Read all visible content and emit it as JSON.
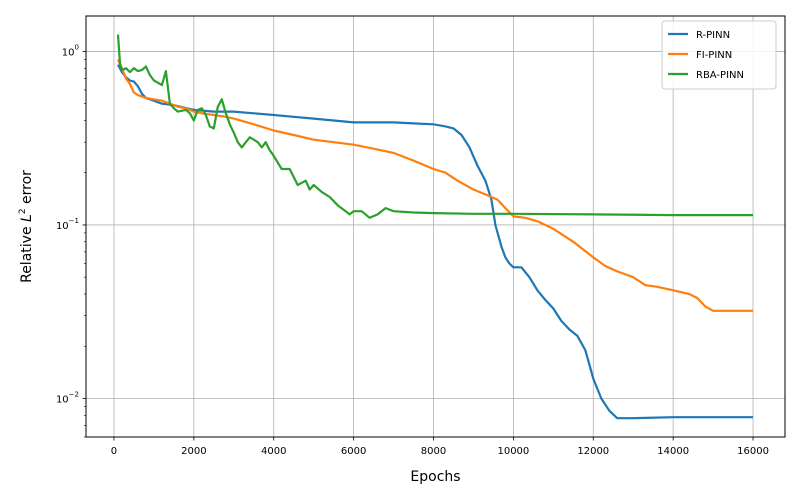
{
  "chart_data": {
    "type": "line",
    "title": "",
    "xlabel": "Epochs",
    "ylabel_prefix": "Relative ",
    "ylabel_var": "L",
    "ylabel_sup": "2",
    "ylabel_suffix": " error",
    "xlim": [
      -700,
      16800
    ],
    "ylim": [
      0.006,
      1.6
    ],
    "yscale": "log",
    "grid": true,
    "legend_position": "top-right",
    "x_ticks": [
      0,
      2000,
      4000,
      6000,
      8000,
      10000,
      12000,
      14000,
      16000
    ],
    "y_ticks": [
      {
        "value": 0.01,
        "base": "10",
        "exp": "−2"
      },
      {
        "value": 0.1,
        "base": "10",
        "exp": "−1"
      },
      {
        "value": 1,
        "base": "10",
        "exp": "0"
      }
    ],
    "series": [
      {
        "name": "R-PINN",
        "color": "#1f77b4",
        "points": [
          [
            100,
            0.84
          ],
          [
            200,
            0.76
          ],
          [
            300,
            0.71
          ],
          [
            400,
            0.68
          ],
          [
            500,
            0.67
          ],
          [
            600,
            0.63
          ],
          [
            700,
            0.57
          ],
          [
            800,
            0.54
          ],
          [
            1000,
            0.52
          ],
          [
            1200,
            0.5
          ],
          [
            1500,
            0.49
          ],
          [
            2000,
            0.46
          ],
          [
            2500,
            0.45
          ],
          [
            3000,
            0.45
          ],
          [
            3500,
            0.44
          ],
          [
            4000,
            0.43
          ],
          [
            4500,
            0.42
          ],
          [
            5000,
            0.41
          ],
          [
            5500,
            0.4
          ],
          [
            6000,
            0.39
          ],
          [
            6500,
            0.39
          ],
          [
            7000,
            0.39
          ],
          [
            7500,
            0.385
          ],
          [
            8000,
            0.38
          ],
          [
            8300,
            0.37
          ],
          [
            8500,
            0.36
          ],
          [
            8700,
            0.33
          ],
          [
            8900,
            0.28
          ],
          [
            9100,
            0.22
          ],
          [
            9300,
            0.18
          ],
          [
            9450,
            0.14
          ],
          [
            9550,
            0.1
          ],
          [
            9700,
            0.075
          ],
          [
            9800,
            0.065
          ],
          [
            9900,
            0.06
          ],
          [
            10000,
            0.057
          ],
          [
            10200,
            0.057
          ],
          [
            10400,
            0.05
          ],
          [
            10600,
            0.042
          ],
          [
            10800,
            0.037
          ],
          [
            11000,
            0.033
          ],
          [
            11200,
            0.028
          ],
          [
            11400,
            0.025
          ],
          [
            11600,
            0.023
          ],
          [
            11800,
            0.019
          ],
          [
            12000,
            0.013
          ],
          [
            12200,
            0.01
          ],
          [
            12400,
            0.0085
          ],
          [
            12600,
            0.0077
          ],
          [
            13000,
            0.0077
          ],
          [
            14000,
            0.0078
          ],
          [
            15000,
            0.0078
          ],
          [
            16000,
            0.0078
          ]
        ]
      },
      {
        "name": "FI-PINN",
        "color": "#ff7f0e",
        "points": [
          [
            100,
            0.9
          ],
          [
            200,
            0.8
          ],
          [
            300,
            0.7
          ],
          [
            400,
            0.65
          ],
          [
            500,
            0.58
          ],
          [
            600,
            0.56
          ],
          [
            700,
            0.55
          ],
          [
            800,
            0.54
          ],
          [
            1000,
            0.53
          ],
          [
            1200,
            0.52
          ],
          [
            1400,
            0.5
          ],
          [
            1600,
            0.48
          ],
          [
            1800,
            0.47
          ],
          [
            2000,
            0.45
          ],
          [
            2200,
            0.44
          ],
          [
            2500,
            0.43
          ],
          [
            2800,
            0.42
          ],
          [
            3000,
            0.41
          ],
          [
            3500,
            0.38
          ],
          [
            4000,
            0.35
          ],
          [
            4500,
            0.33
          ],
          [
            5000,
            0.31
          ],
          [
            5500,
            0.3
          ],
          [
            6000,
            0.29
          ],
          [
            6500,
            0.275
          ],
          [
            7000,
            0.26
          ],
          [
            7500,
            0.235
          ],
          [
            8000,
            0.21
          ],
          [
            8300,
            0.2
          ],
          [
            8600,
            0.18
          ],
          [
            9000,
            0.16
          ],
          [
            9300,
            0.15
          ],
          [
            9600,
            0.14
          ],
          [
            9800,
            0.125
          ],
          [
            10000,
            0.112
          ],
          [
            10300,
            0.11
          ],
          [
            10600,
            0.105
          ],
          [
            11000,
            0.095
          ],
          [
            11500,
            0.08
          ],
          [
            12000,
            0.065
          ],
          [
            12300,
            0.058
          ],
          [
            12600,
            0.054
          ],
          [
            13000,
            0.05
          ],
          [
            13300,
            0.045
          ],
          [
            13600,
            0.044
          ],
          [
            14000,
            0.042
          ],
          [
            14400,
            0.04
          ],
          [
            14600,
            0.038
          ],
          [
            14800,
            0.034
          ],
          [
            15000,
            0.032
          ],
          [
            15500,
            0.032
          ],
          [
            16000,
            0.032
          ]
        ]
      },
      {
        "name": "RBA-PINN",
        "color": "#2ca02c",
        "points": [
          [
            100,
            1.25
          ],
          [
            150,
            0.85
          ],
          [
            200,
            0.78
          ],
          [
            300,
            0.8
          ],
          [
            400,
            0.76
          ],
          [
            500,
            0.8
          ],
          [
            600,
            0.77
          ],
          [
            700,
            0.78
          ],
          [
            800,
            0.82
          ],
          [
            900,
            0.73
          ],
          [
            1000,
            0.68
          ],
          [
            1100,
            0.66
          ],
          [
            1200,
            0.64
          ],
          [
            1300,
            0.77
          ],
          [
            1400,
            0.5
          ],
          [
            1500,
            0.47
          ],
          [
            1600,
            0.45
          ],
          [
            1800,
            0.46
          ],
          [
            1900,
            0.44
          ],
          [
            2000,
            0.4
          ],
          [
            2100,
            0.46
          ],
          [
            2200,
            0.47
          ],
          [
            2300,
            0.43
          ],
          [
            2400,
            0.37
          ],
          [
            2500,
            0.36
          ],
          [
            2600,
            0.48
          ],
          [
            2700,
            0.53
          ],
          [
            2800,
            0.44
          ],
          [
            2900,
            0.38
          ],
          [
            3000,
            0.34
          ],
          [
            3100,
            0.3
          ],
          [
            3200,
            0.28
          ],
          [
            3300,
            0.3
          ],
          [
            3400,
            0.32
          ],
          [
            3500,
            0.31
          ],
          [
            3600,
            0.3
          ],
          [
            3700,
            0.28
          ],
          [
            3800,
            0.3
          ],
          [
            3900,
            0.27
          ],
          [
            4000,
            0.25
          ],
          [
            4200,
            0.21
          ],
          [
            4400,
            0.21
          ],
          [
            4600,
            0.17
          ],
          [
            4800,
            0.18
          ],
          [
            4900,
            0.16
          ],
          [
            5000,
            0.17
          ],
          [
            5200,
            0.155
          ],
          [
            5400,
            0.145
          ],
          [
            5600,
            0.13
          ],
          [
            5800,
            0.12
          ],
          [
            5900,
            0.115
          ],
          [
            6000,
            0.12
          ],
          [
            6200,
            0.12
          ],
          [
            6400,
            0.11
          ],
          [
            6600,
            0.115
          ],
          [
            6800,
            0.125
          ],
          [
            7000,
            0.12
          ],
          [
            7500,
            0.118
          ],
          [
            8000,
            0.117
          ],
          [
            9000,
            0.116
          ],
          [
            10000,
            0.116
          ],
          [
            12000,
            0.115
          ],
          [
            14000,
            0.114
          ],
          [
            16000,
            0.114
          ]
        ]
      }
    ]
  }
}
